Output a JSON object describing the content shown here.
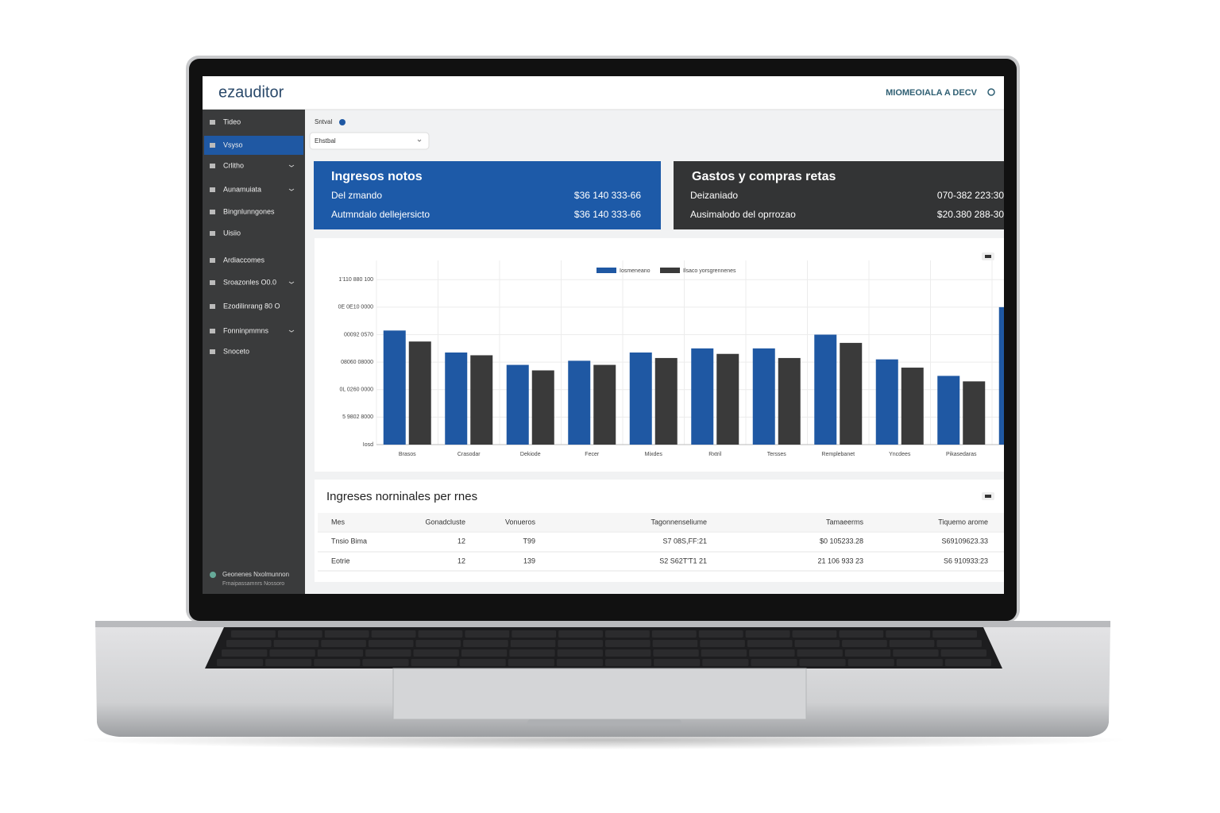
{
  "header": {
    "logo": "ezauditor",
    "company": "MIOMEOIALA A DECV"
  },
  "sidebar": {
    "items": [
      "Tideo",
      "Vsyso",
      "Crlitho",
      "Aunamuiata",
      "Bingnlunngones",
      "Uisiio",
      "Ardiaccomes",
      "Sroazonles O0.0",
      "Ezodilinrang 80 O",
      "Fonninpmmns",
      "Snoceto"
    ],
    "active": 1,
    "footer": [
      "Geonenes Nxolmunnon",
      "Frnaipassamnrs Nossoro"
    ]
  },
  "filter": {
    "label": "Sntval",
    "value": "Ehstbal"
  },
  "cards": [
    {
      "title": "Ingresos notos",
      "rows": [
        {
          "label": "Del zmando",
          "value": "$36 140 333-66"
        },
        {
          "label": "Autmndalo dellejersicto",
          "value": "$36 140 333-66"
        }
      ]
    },
    {
      "title": "Gastos y compras retas",
      "rows": [
        {
          "label": "Deizaniado",
          "value": "070-382 223:30"
        },
        {
          "label": "Ausimalodo del oprrozao",
          "value": "$20.380 288-30"
        }
      ]
    }
  ],
  "chart_data": {
    "type": "bar",
    "categories": [
      "Brasos",
      "Crasodar",
      "Dekiode",
      "Fecer",
      "Mixdes",
      "Rxtril",
      "Tersses",
      "Remplebanet",
      "Yncdees",
      "Pikasedaras",
      null
    ],
    "series": [
      {
        "name": "Iosmeneano",
        "color": "#1f58a3",
        "values": [
          4.15,
          3.35,
          2.9,
          3.05,
          3.35,
          3.5,
          3.5,
          4.0,
          3.1,
          2.5,
          5.0
        ]
      },
      {
        "name": "Ilsaco yorsgrennenes",
        "color": "#3a3a3a",
        "values": [
          3.75,
          3.25,
          2.7,
          2.9,
          3.15,
          3.3,
          3.15,
          3.7,
          2.8,
          2.3,
          null
        ]
      }
    ],
    "ylim": [
      0,
      6.7
    ],
    "yticks": [
      {
        "value": 0,
        "label": "Iosd"
      },
      {
        "value": 1,
        "label": "5 9802 8000"
      },
      {
        "value": 2,
        "label": "0L 0260 0000"
      },
      {
        "value": 3,
        "label": "08060 08000"
      },
      {
        "value": 4,
        "label": "00092 0570"
      },
      {
        "value": 5,
        "label": "0E 0E10 0000"
      },
      {
        "value": 6,
        "label": "1'110 880 100"
      }
    ],
    "grid": true
  },
  "table": {
    "title": "Ingreses norninales per rnes",
    "columns": [
      "Mes",
      "Gonadcluste",
      "Vonueros",
      "Tagonnenseliume",
      "Tamaeerms",
      "Tiquemo arome"
    ],
    "rows": [
      [
        "Tnsio Bima",
        "12",
        "T99",
        "S7 08S,FF:21",
        "$0 105233.28",
        "S69109623.33"
      ],
      [
        "Eotrie",
        "12",
        "139",
        "S2 S62T'T1 21",
        "21 106 933 23",
        "S6 910933:23"
      ]
    ]
  }
}
